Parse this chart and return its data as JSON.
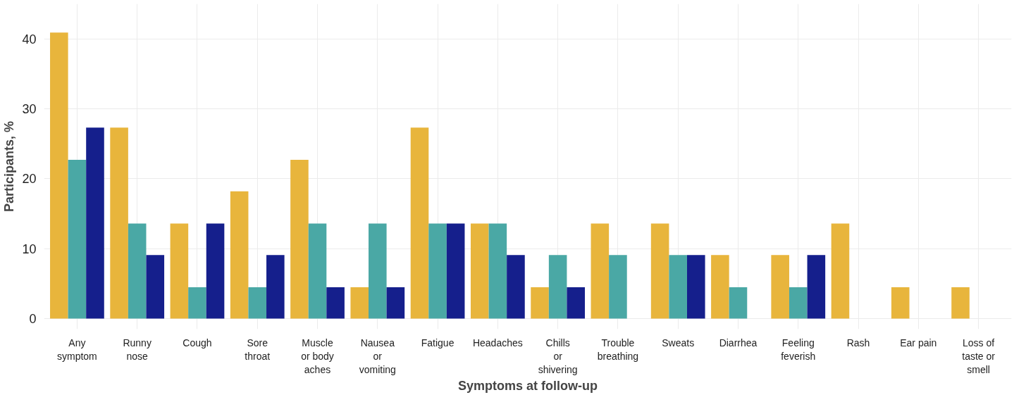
{
  "chart_data": {
    "type": "bar",
    "xlabel": "Symptoms at follow-up",
    "ylabel": "Participants, %",
    "categories": [
      "Any\nsymptom",
      "Runny\nnose",
      "Cough",
      "Sore\nthroat",
      "Muscle\nor body\naches",
      "Nausea\nor\nvomiting",
      "Fatigue",
      "Headaches",
      "Chills\nor\nshivering",
      "Trouble\nbreathing",
      "Sweats",
      "Diarrhea",
      "Feeling\nfeverish",
      "Rash",
      "Ear pain",
      "Loss of\ntaste or\nsmell"
    ],
    "series": [
      {
        "color": "#e8b53c",
        "values": [
          40.9,
          27.3,
          13.6,
          18.2,
          22.7,
          4.5,
          27.3,
          13.6,
          4.5,
          13.6,
          13.6,
          9.1,
          9.1,
          13.6,
          4.5,
          4.5
        ]
      },
      {
        "color": "#4aa8a5",
        "values": [
          22.7,
          13.6,
          4.5,
          4.5,
          13.6,
          13.6,
          13.6,
          13.6,
          9.1,
          9.1,
          9.1,
          4.5,
          4.5,
          0,
          0,
          0
        ]
      },
      {
        "color": "#151f8c",
        "values": [
          27.3,
          9.1,
          13.6,
          9.1,
          4.5,
          4.5,
          13.6,
          9.1,
          4.5,
          0,
          9.1,
          0,
          9.1,
          0,
          0,
          0
        ]
      }
    ],
    "ylim": [
      -1.5,
      45
    ],
    "yticks": [
      0,
      10,
      20,
      30,
      40
    ],
    "grid": true
  }
}
